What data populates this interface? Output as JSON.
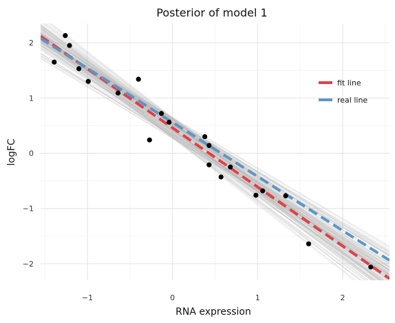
{
  "chart_data": {
    "type": "scatter",
    "title": "Posterior of model 1",
    "xlabel": "RNA expression",
    "ylabel": "logFC",
    "xlim": [
      -1.55,
      2.55
    ],
    "ylim": [
      -2.3,
      2.35
    ],
    "x_ticks": [
      {
        "value": -1,
        "label": "−1"
      },
      {
        "value": 0,
        "label": "0"
      },
      {
        "value": 1,
        "label": "1"
      },
      {
        "value": 2,
        "label": "2"
      }
    ],
    "y_ticks": [
      {
        "value": -2,
        "label": "−2"
      },
      {
        "value": -1,
        "label": "−1"
      },
      {
        "value": 0,
        "label": "0"
      },
      {
        "value": 1,
        "label": "1"
      },
      {
        "value": 2,
        "label": "2"
      }
    ],
    "grid": true,
    "legend_position": "top-right",
    "points": [
      {
        "x": -1.39,
        "y": 1.65
      },
      {
        "x": -1.26,
        "y": 2.13
      },
      {
        "x": -1.21,
        "y": 1.95
      },
      {
        "x": -1.1,
        "y": 1.53
      },
      {
        "x": -0.99,
        "y": 1.3
      },
      {
        "x": -0.64,
        "y": 1.09
      },
      {
        "x": -0.4,
        "y": 1.34
      },
      {
        "x": -0.27,
        "y": 0.24
      },
      {
        "x": -0.13,
        "y": 0.72
      },
      {
        "x": -0.04,
        "y": 0.56
      },
      {
        "x": 0.38,
        "y": 0.3
      },
      {
        "x": 0.43,
        "y": 0.14
      },
      {
        "x": 0.43,
        "y": -0.21
      },
      {
        "x": 0.57,
        "y": -0.43
      },
      {
        "x": 0.68,
        "y": -0.25
      },
      {
        "x": 0.98,
        "y": -0.76
      },
      {
        "x": 1.06,
        "y": -0.68
      },
      {
        "x": 1.33,
        "y": -0.77
      },
      {
        "x": 1.6,
        "y": -1.64
      },
      {
        "x": 2.33,
        "y": -2.06
      }
    ],
    "series": [
      {
        "name": "fit line",
        "color": "#e04046",
        "style": "dashed",
        "intercept": 0.46,
        "slope": -1.07
      },
      {
        "name": "real line",
        "color": "#5d95c4",
        "style": "dashed",
        "intercept": 0.56,
        "slope": -0.98
      }
    ],
    "posterior_band": {
      "color": "#b4b4b4",
      "intercept_range": [
        0.26,
        0.66
      ],
      "slope_range": [
        -1.22,
        -0.9
      ]
    }
  }
}
